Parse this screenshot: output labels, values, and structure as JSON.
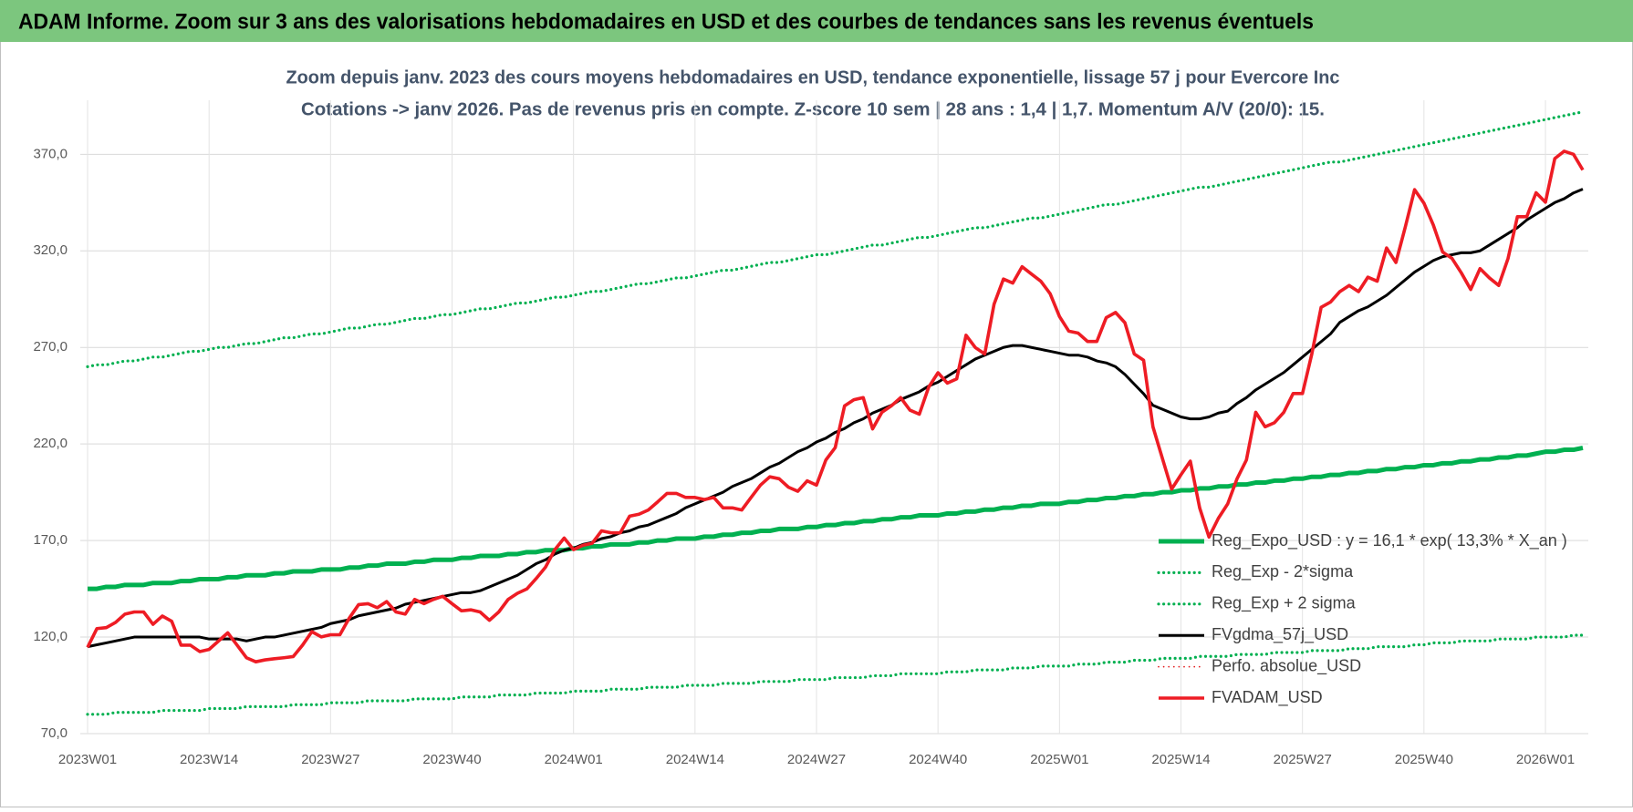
{
  "chart_data": {
    "type": "line",
    "title": "ADAM Informe. Zoom sur 3 ans des valorisations hebdomadaires en USD et des courbes de tendances sans les revenus éventuels",
    "subtitle": [
      "Zoom depuis janv. 2023 des cours moyens hebdomadaires en USD, tendance exponentielle, lissage 57 j pour Evercore Inc",
      "Cotations -> janv 2026. Pas de revenus pris en compte. Z-score 10 sem  | 28 ans : 1,4 | 1,7. Momentum A/V (20/0): 15."
    ],
    "categories": [
      "2023W01",
      null,
      null,
      null,
      null,
      null,
      null,
      null,
      null,
      null,
      null,
      null,
      null,
      "2023W14",
      null,
      null,
      null,
      null,
      null,
      null,
      null,
      null,
      null,
      null,
      null,
      null,
      "2023W27",
      null,
      null,
      null,
      null,
      null,
      null,
      null,
      null,
      null,
      null,
      null,
      null,
      "2023W40",
      null,
      null,
      null,
      null,
      null,
      null,
      null,
      null,
      null,
      null,
      null,
      null,
      "2024W01",
      null,
      null,
      null,
      null,
      null,
      null,
      null,
      null,
      null,
      null,
      null,
      null,
      "2024W14",
      null,
      null,
      null,
      null,
      null,
      null,
      null,
      null,
      null,
      null,
      null,
      null,
      "2024W27",
      null,
      null,
      null,
      null,
      null,
      null,
      null,
      null,
      null,
      null,
      null,
      null,
      "2024W40",
      null,
      null,
      null,
      null,
      null,
      null,
      null,
      null,
      null,
      null,
      null,
      null,
      "2025W01",
      null,
      null,
      null,
      null,
      null,
      null,
      null,
      null,
      null,
      null,
      null,
      null,
      "2025W14",
      null,
      null,
      null,
      null,
      null,
      null,
      null,
      null,
      null,
      null,
      null,
      null,
      "2025W27",
      null,
      null,
      null,
      null,
      null,
      null,
      null,
      null,
      null,
      null,
      null,
      null,
      "2025W40",
      null,
      null,
      null,
      null,
      null,
      null,
      null,
      null,
      null,
      null,
      null,
      null,
      "2026W01",
      null,
      null,
      null,
      null
    ],
    "ylim": [
      70,
      398
    ],
    "yticks": [
      {
        "value": 70,
        "label": "70,0"
      },
      {
        "value": 120,
        "label": "120,0"
      },
      {
        "value": 170,
        "label": "170,0"
      },
      {
        "value": 220,
        "label": "220,0"
      },
      {
        "value": 270,
        "label": "270,0"
      },
      {
        "value": 320,
        "label": "320,0"
      },
      {
        "value": 370,
        "label": "370,0"
      }
    ],
    "grid": true,
    "legend_position": "right",
    "series": [
      {
        "name": "Reg_Expo_USD : y = 16,1 * exp( 13,3% *  X_an )",
        "color": "#00b050",
        "dash": "solid",
        "values": [
          145,
          145,
          146,
          146,
          147,
          147,
          147,
          148,
          148,
          148,
          149,
          149,
          150,
          150,
          150,
          151,
          151,
          152,
          152,
          152,
          153,
          153,
          154,
          154,
          154,
          155,
          155,
          155,
          156,
          156,
          157,
          157,
          158,
          158,
          158,
          159,
          159,
          160,
          160,
          160,
          161,
          161,
          162,
          162,
          162,
          163,
          163,
          164,
          164,
          165,
          165,
          165,
          166,
          166,
          167,
          167,
          168,
          168,
          168,
          169,
          169,
          170,
          170,
          171,
          171,
          171,
          172,
          172,
          173,
          173,
          174,
          174,
          175,
          175,
          176,
          176,
          176,
          177,
          177,
          178,
          178,
          179,
          179,
          180,
          180,
          181,
          181,
          182,
          182,
          183,
          183,
          183,
          184,
          184,
          185,
          185,
          186,
          186,
          187,
          187,
          188,
          188,
          189,
          189,
          189,
          190,
          190,
          191,
          191,
          192,
          192,
          193,
          193,
          194,
          194,
          195,
          195,
          196,
          196,
          197,
          197,
          198,
          198,
          199,
          199,
          200,
          200,
          201,
          201,
          202,
          202,
          203,
          203,
          204,
          204,
          205,
          205,
          206,
          206,
          207,
          207,
          208,
          208,
          209,
          209,
          210,
          210,
          211,
          211,
          212,
          212,
          213,
          213,
          214,
          214,
          215,
          216,
          216,
          217,
          217,
          218
        ]
      },
      {
        "name": "Reg_Exp - 2*sigma",
        "color": "#00b050",
        "dash": "dotted",
        "values": [
          80,
          80,
          80,
          81,
          81,
          81,
          81,
          81,
          82,
          82,
          82,
          82,
          82,
          83,
          83,
          83,
          83,
          84,
          84,
          84,
          84,
          84,
          85,
          85,
          85,
          85,
          86,
          86,
          86,
          86,
          87,
          87,
          87,
          87,
          87,
          88,
          88,
          88,
          88,
          88,
          89,
          89,
          89,
          89,
          90,
          90,
          90,
          90,
          91,
          91,
          91,
          91,
          92,
          92,
          92,
          92,
          93,
          93,
          93,
          93,
          94,
          94,
          94,
          94,
          95,
          95,
          95,
          95,
          96,
          96,
          96,
          96,
          97,
          97,
          97,
          97,
          98,
          98,
          98,
          98,
          99,
          99,
          99,
          99,
          100,
          100,
          100,
          101,
          101,
          101,
          101,
          101,
          102,
          102,
          102,
          103,
          103,
          103,
          103,
          104,
          104,
          104,
          105,
          105,
          105,
          105,
          106,
          106,
          106,
          107,
          107,
          107,
          108,
          108,
          108,
          109,
          109,
          109,
          109,
          110,
          110,
          110,
          110,
          111,
          111,
          111,
          111,
          112,
          112,
          112,
          112,
          113,
          113,
          113,
          113,
          114,
          114,
          114,
          115,
          115,
          115,
          115,
          116,
          116,
          117,
          117,
          117,
          118,
          118,
          118,
          118,
          119,
          119,
          119,
          119,
          120,
          120,
          120,
          120,
          121,
          121
        ]
      },
      {
        "name": "Reg_Exp + 2 sigma",
        "color": "#00b050",
        "dash": "dotted",
        "values": [
          260,
          261,
          261,
          262,
          263,
          263,
          264,
          265,
          265,
          266,
          267,
          268,
          268,
          269,
          270,
          270,
          271,
          272,
          272,
          273,
          274,
          275,
          275,
          276,
          277,
          277,
          278,
          279,
          280,
          280,
          281,
          282,
          282,
          283,
          284,
          285,
          285,
          286,
          287,
          287,
          288,
          289,
          290,
          290,
          291,
          292,
          293,
          293,
          294,
          295,
          296,
          296,
          297,
          298,
          299,
          299,
          300,
          301,
          302,
          303,
          303,
          304,
          305,
          306,
          306,
          307,
          308,
          309,
          310,
          310,
          311,
          312,
          313,
          314,
          314,
          315,
          316,
          317,
          318,
          318,
          319,
          320,
          321,
          322,
          323,
          323,
          324,
          325,
          326,
          327,
          327,
          328,
          329,
          330,
          331,
          332,
          332,
          333,
          334,
          335,
          336,
          337,
          337,
          338,
          339,
          340,
          341,
          342,
          343,
          344,
          344,
          345,
          346,
          347,
          348,
          349,
          350,
          351,
          352,
          353,
          353,
          354,
          355,
          356,
          357,
          358,
          359,
          360,
          361,
          362,
          363,
          364,
          365,
          366,
          366,
          367,
          368,
          369,
          370,
          371,
          372,
          373,
          374,
          375,
          376,
          377,
          378,
          379,
          380,
          381,
          382,
          383,
          384,
          385,
          386,
          387,
          388,
          389,
          390,
          391,
          392
        ]
      },
      {
        "name": "FVgdma_57j_USD",
        "color": "#000000",
        "dash": "solid",
        "values": [
          115,
          116,
          117,
          118,
          119,
          120,
          120,
          120,
          120,
          120,
          120,
          120,
          120,
          119,
          119,
          119,
          119,
          118,
          119,
          120,
          120,
          121,
          122,
          123,
          124,
          125,
          127,
          128,
          129,
          131,
          132,
          133,
          134,
          135,
          137,
          138,
          139,
          140,
          141,
          142,
          143,
          143,
          144,
          146,
          148,
          150,
          152,
          155,
          158,
          160,
          163,
          165,
          166,
          168,
          169,
          171,
          172,
          174,
          175,
          177,
          178,
          180,
          182,
          184,
          187,
          189,
          191,
          193,
          195,
          198,
          200,
          202,
          205,
          208,
          210,
          213,
          216,
          218,
          221,
          223,
          226,
          228,
          231,
          233,
          236,
          238,
          240,
          243,
          245,
          247,
          250,
          252,
          255,
          258,
          261,
          264,
          266,
          268,
          270,
          271,
          271,
          270,
          269,
          268,
          267,
          266,
          266,
          265,
          263,
          262,
          260,
          256,
          251,
          246,
          240,
          238,
          236,
          234,
          233,
          233,
          234,
          236,
          237,
          241,
          244,
          248,
          251,
          254,
          257,
          261,
          265,
          269,
          273,
          277,
          283,
          286,
          289,
          291,
          294,
          297,
          301,
          305,
          309,
          312,
          315,
          317,
          318,
          319,
          319,
          320,
          323,
          326,
          329,
          332,
          336,
          339,
          342,
          345,
          347,
          350,
          352
        ]
      },
      {
        "name": "Perfo. absolue_USD",
        "color": "#e31a1c",
        "dash": "dotted"
      },
      {
        "name": "FVADAM_USD",
        "color": "#ee1c24",
        "dash": "solid",
        "values": [
          114.7,
          124.4,
          124.9,
          127.6,
          131.9,
          133.0,
          133.0,
          126.6,
          130.9,
          128.2,
          115.8,
          115.8,
          112.5,
          113.6,
          117.9,
          122.2,
          115.8,
          109.3,
          107.2,
          108.2,
          108.8,
          109.3,
          109.9,
          115.8,
          122.8,
          120.1,
          121.2,
          121.2,
          129.8,
          136.8,
          137.3,
          135.2,
          138.4,
          133.0,
          131.9,
          139.5,
          137.3,
          139.5,
          141.1,
          137.3,
          133.6,
          134.1,
          133.0,
          128.7,
          133.0,
          139.5,
          142.7,
          144.9,
          150.3,
          156.2,
          165.3,
          171.3,
          165.3,
          167.5,
          168.6,
          175.0,
          174.0,
          174.0,
          182.6,
          183.6,
          185.8,
          190.0,
          194.4,
          194.4,
          192.3,
          192.3,
          191.2,
          192.3,
          186.9,
          186.9,
          185.8,
          192.3,
          198.7,
          203.0,
          202.0,
          197.6,
          195.5,
          200.9,
          198.7,
          211.7,
          218.1,
          239.7,
          242.9,
          244.0,
          227.8,
          236.4,
          239.7,
          244.0,
          237.5,
          235.4,
          249.4,
          256.9,
          251.5,
          253.7,
          276.3,
          269.9,
          266.6,
          292.4,
          305.4,
          303.3,
          311.8,
          308.0,
          304.3,
          297.8,
          286.0,
          278.4,
          277.4,
          273.1,
          273.1,
          285.4,
          288.1,
          282.8,
          266.6,
          263.4,
          228.9,
          212.7,
          196.6,
          204.1,
          211.1,
          186.9,
          171.8,
          181.5,
          189.0,
          202.0,
          211.7,
          236.4,
          228.9,
          231.0,
          236.4,
          246.1,
          246.1,
          266.6,
          290.8,
          293.5,
          298.9,
          302.1,
          298.9,
          306.4,
          304.3,
          321.5,
          314.0,
          332.3,
          351.7,
          344.7,
          333.4,
          319.4,
          316.1,
          308.6,
          300.0,
          310.8,
          306.0,
          302.1,
          316.1,
          337.7,
          337.7,
          350.1,
          345.2,
          367.8,
          371.6,
          370.0,
          361.9
        ]
      }
    ]
  }
}
